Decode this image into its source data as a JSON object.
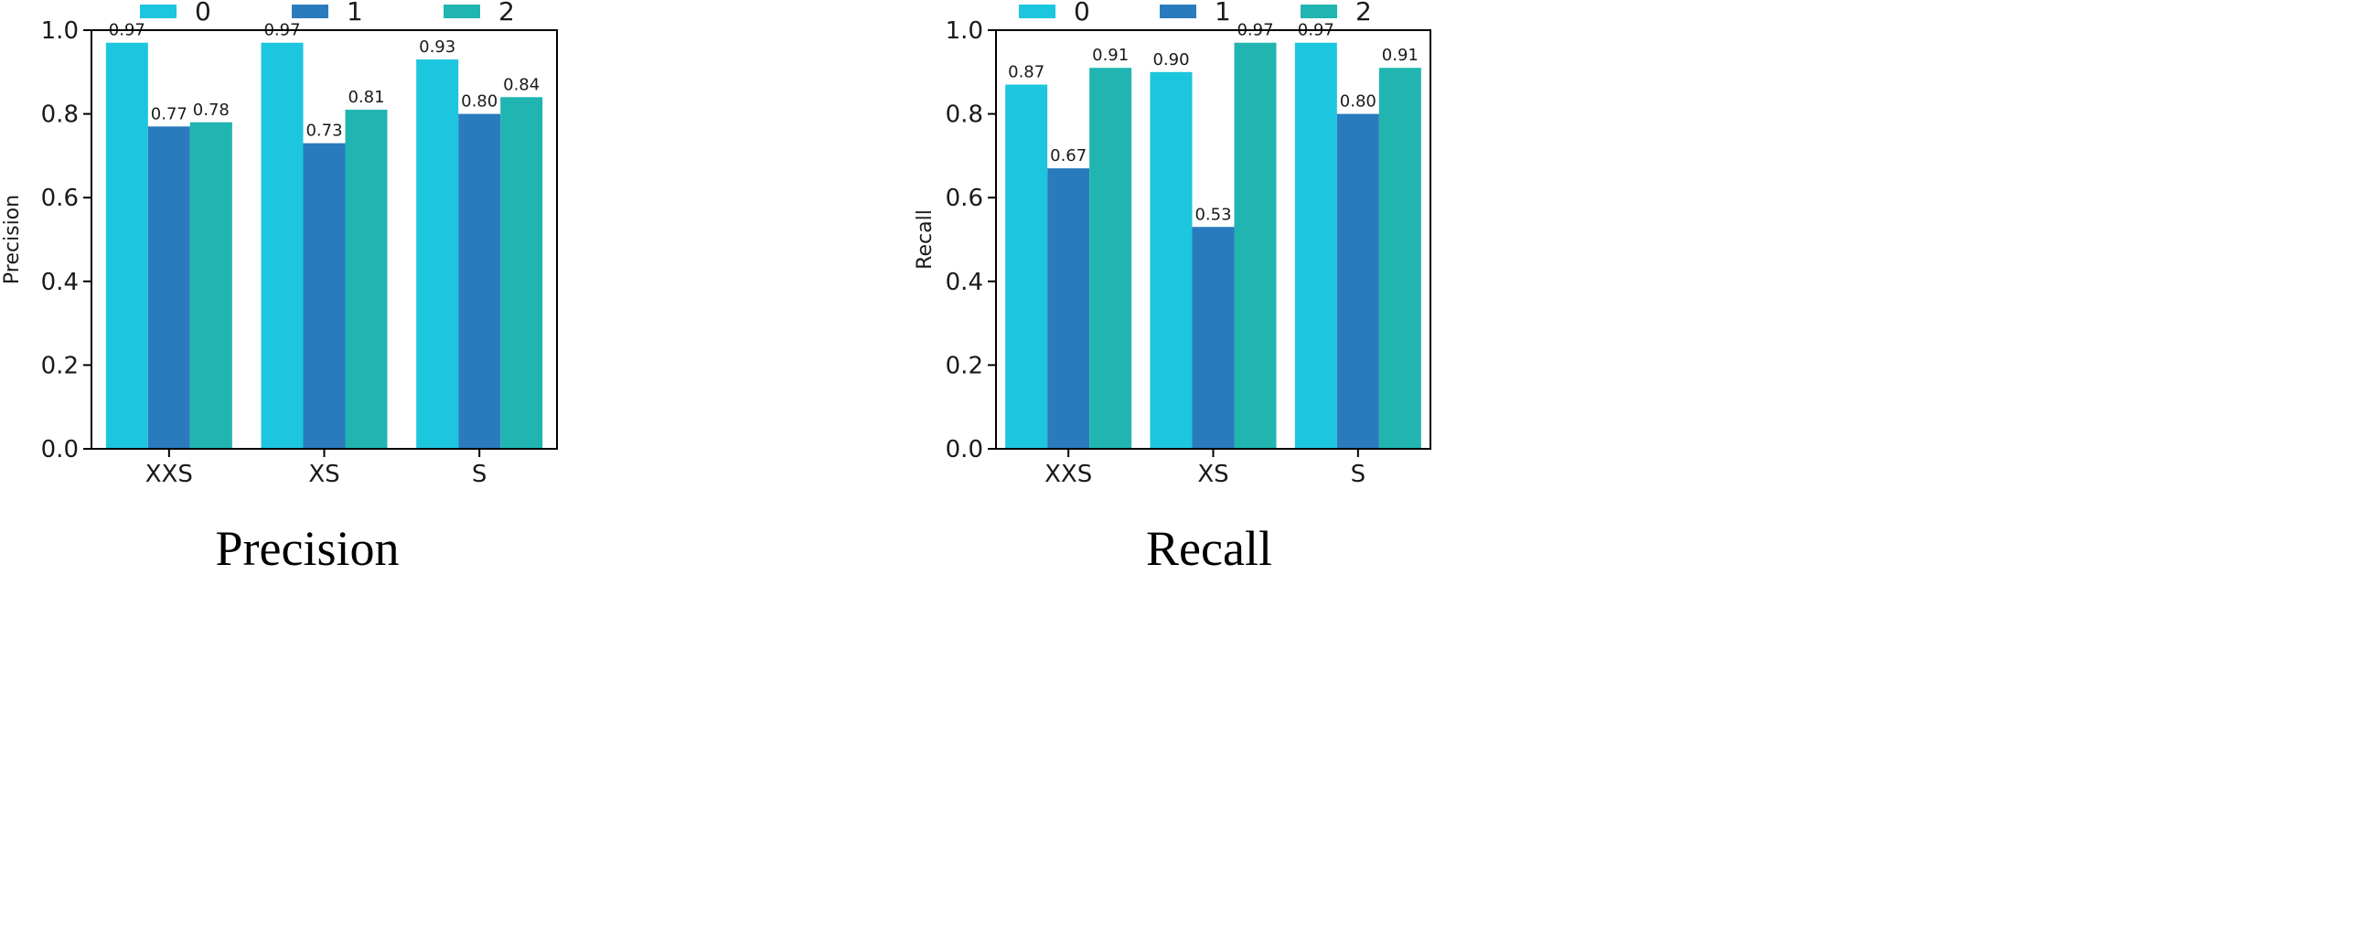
{
  "chart_data": [
    {
      "type": "bar",
      "caption": "Precision",
      "ylabel": "Precision",
      "xlabel": "",
      "categories": [
        "XXS",
        "XS",
        "S"
      ],
      "ylim": [
        0,
        1.0
      ],
      "yticks": [
        "0.0",
        "0.2",
        "0.4",
        "0.6",
        "0.8",
        "1.0"
      ],
      "legend_position": "top",
      "series": [
        {
          "name": "0",
          "color": "#1cc6de",
          "values": [
            0.97,
            0.97,
            0.93
          ],
          "labels": [
            "0.97",
            "0.97",
            "0.93"
          ]
        },
        {
          "name": "1",
          "color": "#2a7bbd",
          "values": [
            0.77,
            0.73,
            0.8
          ],
          "labels": [
            "0.77",
            "0.73",
            "0.80"
          ]
        },
        {
          "name": "2",
          "color": "#20b5b0",
          "values": [
            0.78,
            0.81,
            0.84
          ],
          "labels": [
            "0.78",
            "0.81",
            "0.84"
          ]
        }
      ]
    },
    {
      "type": "bar",
      "caption": "Recall",
      "ylabel": "Recall",
      "xlabel": "",
      "categories": [
        "XXS",
        "XS",
        "S"
      ],
      "ylim": [
        0,
        1.0
      ],
      "yticks": [
        "0.0",
        "0.2",
        "0.4",
        "0.6",
        "0.8",
        "1.0"
      ],
      "legend_position": "top",
      "series": [
        {
          "name": "0",
          "color": "#1cc6de",
          "values": [
            0.87,
            0.9,
            0.97
          ],
          "labels": [
            "0.87",
            "0.90",
            "0.97"
          ]
        },
        {
          "name": "1",
          "color": "#2a7bbd",
          "values": [
            0.67,
            0.53,
            0.8
          ],
          "labels": [
            "0.67",
            "0.53",
            "0.80"
          ]
        },
        {
          "name": "2",
          "color": "#20b5b0",
          "values": [
            0.91,
            0.97,
            0.91
          ],
          "labels": [
            "0.91",
            "0.97",
            "0.91"
          ]
        }
      ]
    }
  ]
}
